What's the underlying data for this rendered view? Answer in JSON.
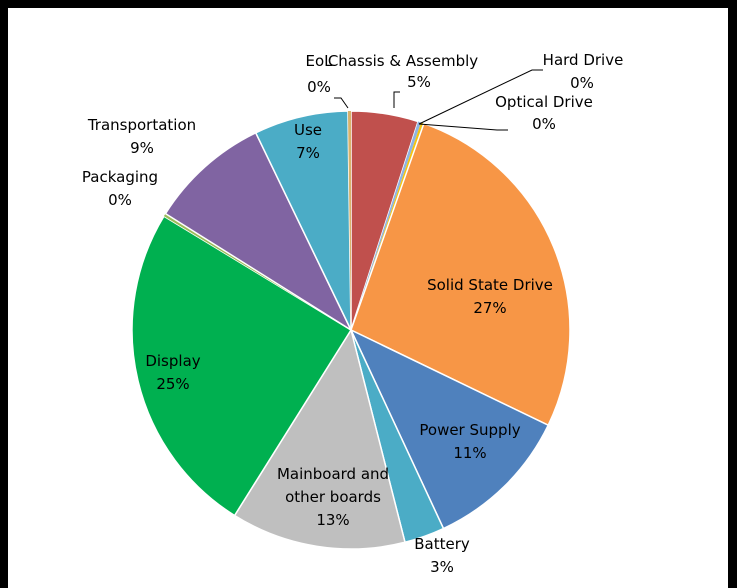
{
  "chart_data": {
    "type": "pie",
    "title": "",
    "slices": [
      {
        "label": "Chassis & Assembly",
        "value": 5,
        "value_label": "5%",
        "color": "#C0504D"
      },
      {
        "label": "Hard Drive",
        "value": 0,
        "value_label": "0%",
        "color": "#8EB4E3"
      },
      {
        "label": "Optical Drive",
        "value": 0,
        "value_label": "0%",
        "color": "#F2C314"
      },
      {
        "label": "Solid State Drive",
        "value": 27,
        "value_label": "27%",
        "color": "#F79646"
      },
      {
        "label": "Power Supply",
        "value": 11,
        "value_label": "11%",
        "color": "#4F81BD"
      },
      {
        "label": "Battery",
        "value": 3,
        "value_label": "3%",
        "color": "#4BACC6"
      },
      {
        "label": "Mainboard and other boards",
        "value": 13,
        "value_label": "13%",
        "color": "#BFBFBF"
      },
      {
        "label": "Display",
        "value": 25,
        "value_label": "25%",
        "color": "#00B050"
      },
      {
        "label": "Packaging",
        "value": 0,
        "value_label": "0%",
        "color": "#9BBB59"
      },
      {
        "label": "Transportation",
        "value": 9,
        "value_label": "9%",
        "color": "#8064A2"
      },
      {
        "label": "Use",
        "value": 7,
        "value_label": "7%",
        "color": "#4BACC6"
      },
      {
        "label": "EoL",
        "value": 0,
        "value_label": "0%",
        "color": "#D9B36C"
      }
    ],
    "legend": "none"
  }
}
